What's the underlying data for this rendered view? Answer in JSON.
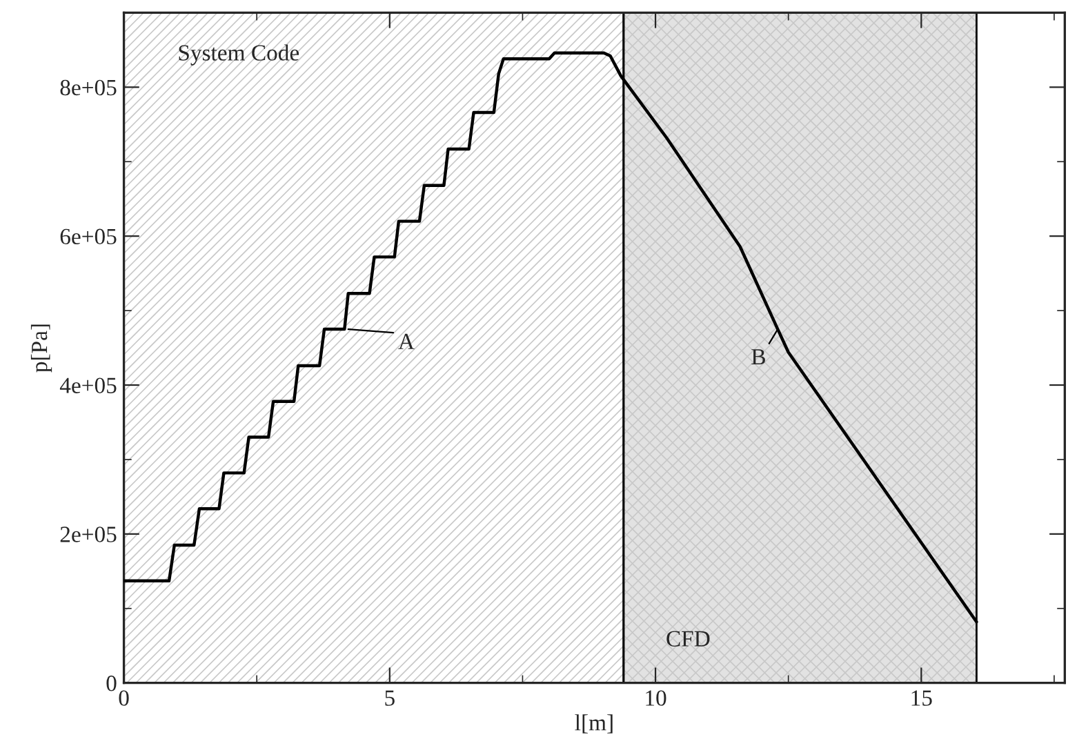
{
  "chart_data": {
    "type": "line",
    "xlabel": "l[m]",
    "ylabel": "p[Pa]",
    "x": [
      0,
      0.85,
      0.95,
      1.32,
      1.42,
      1.79,
      1.88,
      2.26,
      2.35,
      2.72,
      2.81,
      3.2,
      3.28,
      3.68,
      3.77,
      4.15,
      4.22,
      4.62,
      4.71,
      5.09,
      5.17,
      5.56,
      5.65,
      6.02,
      6.1,
      6.49,
      6.58,
      6.96,
      7.05,
      7.14,
      8.0,
      8.1,
      9.03,
      9.15,
      9.35,
      10.21,
      11.59,
      12.3,
      12.5,
      16.04
    ],
    "series": [
      {
        "color": "#000000",
        "values": [
          137000,
          137000,
          185000,
          185000,
          234000,
          234000,
          282000,
          282000,
          330000,
          330000,
          378000,
          378000,
          426000,
          426000,
          475000,
          475000,
          523000,
          523000,
          572000,
          572000,
          620000,
          620000,
          668000,
          668000,
          717000,
          717000,
          766000,
          766000,
          818000,
          838000,
          838000,
          846000,
          846000,
          842000,
          815000,
          732000,
          586000,
          475000,
          444000,
          82000
        ]
      }
    ],
    "xlim": [
      0,
      17.7
    ],
    "ylim": [
      0,
      900000
    ],
    "xticks": [
      0,
      {
        "value": 2.5,
        "label": null
      },
      5,
      {
        "value": 7.5,
        "label": null
      },
      10,
      {
        "value": 12.5,
        "label": null
      },
      15,
      {
        "value": 17.5,
        "label": null
      }
    ],
    "yticks": [
      0,
      {
        "value": 100000,
        "label": null
      },
      {
        "value": 200000,
        "label": "2e+05"
      },
      {
        "value": 300000,
        "label": null
      },
      {
        "value": 400000,
        "label": "4e+05"
      },
      {
        "value": 500000,
        "label": null
      },
      {
        "value": 600000,
        "label": "6e+05"
      },
      {
        "value": 700000,
        "label": null
      },
      {
        "value": 800000,
        "label": "8e+05"
      }
    ],
    "bands": [
      {
        "axis": "x",
        "from": 0,
        "to": 9.4,
        "label": "System Code",
        "color": "#ffffff"
      },
      {
        "axis": "x",
        "from": 9.4,
        "to": 16.04,
        "label": "CFD",
        "color": "#e2e2e2"
      }
    ],
    "annotations": [
      {
        "text": "A",
        "x": 4.22,
        "y": 475000
      },
      {
        "text": "B",
        "x": 12.3,
        "y": 475000
      }
    ],
    "grid": false,
    "legend": false,
    "marker": "none",
    "line_style": "solid"
  }
}
